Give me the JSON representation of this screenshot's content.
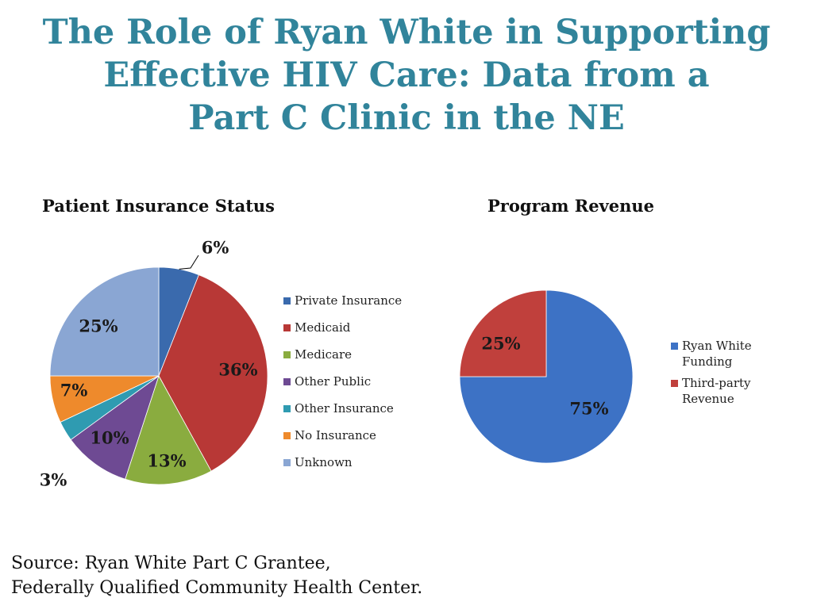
{
  "title": {
    "line1": "The Role of Ryan White in Supporting",
    "line2": "Effective HIV Care: Data from a",
    "line3": "Part C Clinic in the NE"
  },
  "source": {
    "line1": "Source:  Ryan White Part C Grantee,",
    "line2": "Federally Qualified Community Health Center."
  },
  "chart_data": [
    {
      "type": "pie",
      "title": "Patient Insurance Status",
      "legend_position": "right",
      "categories": [
        "Private Insurance",
        "Medicaid",
        "Medicare",
        "Other Public",
        "Other Insurance",
        "No Insurance",
        "Unknown"
      ],
      "values": [
        6,
        36,
        13,
        10,
        3,
        7,
        25
      ],
      "labels": [
        "6%",
        "36%",
        "13%",
        "10%",
        "3%",
        "7%",
        "25%"
      ],
      "colors": [
        "#3a6aad",
        "#b83836",
        "#8aac3f",
        "#6e4a93",
        "#2f9bb1",
        "#ee8a2c",
        "#8aa6d3"
      ]
    },
    {
      "type": "pie",
      "title": "Program Revenue",
      "legend_position": "right",
      "categories": [
        "Ryan White Funding",
        "Third-party Revenue"
      ],
      "legend_lines": [
        [
          "Ryan White",
          "Funding"
        ],
        [
          "Third-party",
          "Revenue"
        ]
      ],
      "values": [
        75,
        25
      ],
      "labels": [
        "75%",
        "25%"
      ],
      "colors": [
        "#3d72c5",
        "#c0403c"
      ]
    }
  ]
}
